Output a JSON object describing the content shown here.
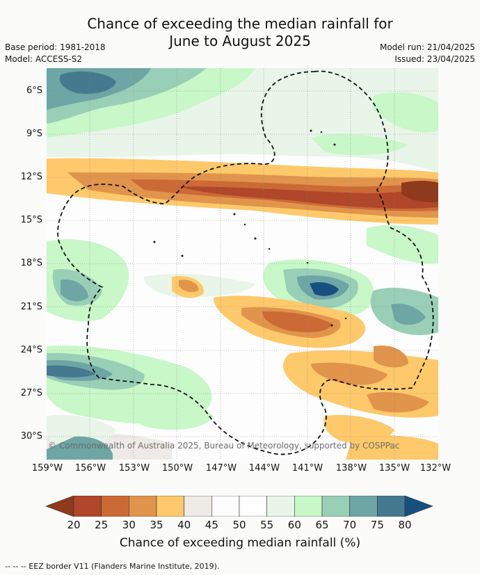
{
  "header": {
    "title": "Chance of exceeding the median rainfall for\nJune to August 2025",
    "base_period": "Base period: 1981-2018",
    "model": "Model: ACCESS-S2",
    "model_run": "Model run: 21/04/2025",
    "issued": "Issued: 23/04/2025"
  },
  "map": {
    "lat_labels": [
      "6°S",
      "9°S",
      "12°S",
      "15°S",
      "18°S",
      "21°S",
      "24°S",
      "27°S",
      "30°S"
    ],
    "lon_labels": [
      "159°W",
      "156°W",
      "153°W",
      "150°W",
      "147°W",
      "144°W",
      "141°W",
      "138°W",
      "135°W",
      "132°W"
    ],
    "lat_range": [
      "4.5°S",
      "31.5°S"
    ],
    "lon_range": [
      "159°W",
      "132°W"
    ],
    "gridlines": true,
    "eez_border_style": "dashed",
    "copyright": "© Commonwealth of Australia 2025, Bureau of Meteorology, supported by COSPPac"
  },
  "colorbar": {
    "ticks": [
      "20",
      "25",
      "30",
      "35",
      "40",
      "45",
      "50",
      "55",
      "60",
      "65",
      "70",
      "75",
      "80"
    ],
    "under_color": "#8e3a1c",
    "over_color": "#174f7e",
    "colors": [
      "#b0462a",
      "#cc6a36",
      "#e1944b",
      "#fec96a",
      "#eeebe6",
      "#fdfdfd",
      "#fefefe",
      "#e8f5e8",
      "#c8f7c8",
      "#99cfb6",
      "#6ea5a5",
      "#45798f"
    ],
    "label": "Chance of exceeding median rainfall (%)"
  },
  "footnote": "--  --  -- EEZ border V11 (Flanders Marine Institute, 2019)."
}
